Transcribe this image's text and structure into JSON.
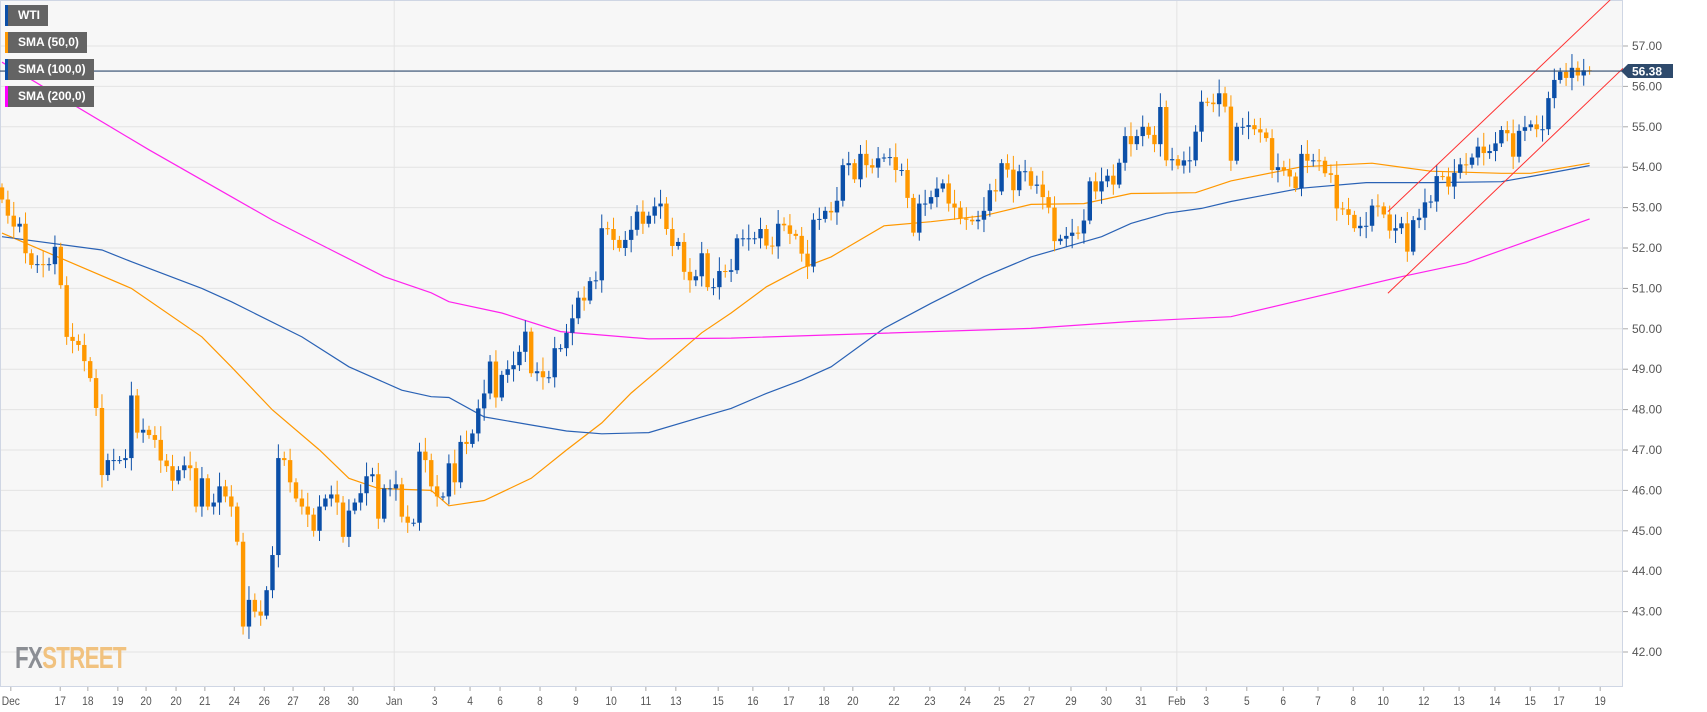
{
  "legend": [
    {
      "label": "WTI",
      "color": "#0b4fa8"
    },
    {
      "label": "SMA (50,0)",
      "color": "#ff9800"
    },
    {
      "label": "SMA (100,0)",
      "color": "#0b4fa8"
    },
    {
      "label": "SMA (200,0)",
      "color": "#ff00ff"
    }
  ],
  "logo": {
    "fx": "FX",
    "street": "STREET"
  },
  "current_price": {
    "label": "56.38",
    "value": 56.38,
    "color": "#2e4a6c"
  },
  "colors": {
    "up": "#0b4fa8",
    "down": "#ff9800",
    "sma50": "#ff9800",
    "sma100": "#2a62b5",
    "sma200": "#ff22ee",
    "channel": "#ff3030",
    "grid": "#e3e3e3",
    "background": "#f7f7f7"
  },
  "chart_data": {
    "type": "candlestick",
    "title": "WTI",
    "ylim": [
      41.2,
      58.15
    ],
    "yticks": [
      "42.00",
      "43.00",
      "44.00",
      "45.00",
      "46.00",
      "47.00",
      "48.00",
      "49.00",
      "50.00",
      "51.00",
      "52.00",
      "53.00",
      "54.00",
      "55.00",
      "56.00",
      "57.00"
    ],
    "xticks": [
      {
        "label": "Dec",
        "index": 1.5
      },
      {
        "label": "17",
        "index": 9.9
      },
      {
        "label": "18",
        "index": 14.6
      },
      {
        "label": "19",
        "index": 19.7
      },
      {
        "label": "20",
        "index": 24.5
      },
      {
        "label": "20",
        "index": 29.6
      },
      {
        "label": "21",
        "index": 34.5
      },
      {
        "label": "24",
        "index": 39.5
      },
      {
        "label": "26",
        "index": 44.6
      },
      {
        "label": "27",
        "index": 49.5
      },
      {
        "label": "28",
        "index": 54.8
      },
      {
        "label": "30",
        "index": 59.7
      },
      {
        "label": "Jan",
        "index": 66.7
      },
      {
        "label": "3",
        "index": 73.6
      },
      {
        "label": "4",
        "index": 79.6
      },
      {
        "label": "6",
        "index": 84.7
      },
      {
        "label": "8",
        "index": 91.5
      },
      {
        "label": "9",
        "index": 97.6
      },
      {
        "label": "10",
        "index": 103.6
      },
      {
        "label": "11",
        "index": 109.5
      },
      {
        "label": "13",
        "index": 114.6
      },
      {
        "label": "15",
        "index": 121.8
      },
      {
        "label": "16",
        "index": 127.7
      },
      {
        "label": "17",
        "index": 133.8
      },
      {
        "label": "18",
        "index": 139.8
      },
      {
        "label": "20",
        "index": 144.7
      },
      {
        "label": "22",
        "index": 151.7
      },
      {
        "label": "23",
        "index": 157.8
      },
      {
        "label": "24",
        "index": 163.8
      },
      {
        "label": "25",
        "index": 169.6
      },
      {
        "label": "27",
        "index": 174.7
      },
      {
        "label": "29",
        "index": 181.8
      },
      {
        "label": "30",
        "index": 187.8
      },
      {
        "label": "31",
        "index": 193.7
      },
      {
        "label": "Feb",
        "index": 199.8
      },
      {
        "label": "3",
        "index": 204.8
      },
      {
        "label": "5",
        "index": 211.7
      },
      {
        "label": "6",
        "index": 217.9
      },
      {
        "label": "7",
        "index": 223.8
      },
      {
        "label": "8",
        "index": 229.8
      },
      {
        "label": "10",
        "index": 234.9
      },
      {
        "label": "12",
        "index": 241.8
      },
      {
        "label": "13",
        "index": 247.8
      },
      {
        "label": "14",
        "index": 253.9
      },
      {
        "label": "15",
        "index": 259.9
      },
      {
        "label": "17",
        "index": 264.8
      },
      {
        "label": "19",
        "index": 271.8
      }
    ],
    "month_dividers": [
      66.7,
      199.8
    ],
    "first_open": 53.5,
    "closes": [
      53.2,
      52.8,
      52.53,
      52.6,
      51.87,
      51.58,
      51.6,
      51.58,
      51.6,
      52.03,
      51.08,
      49.8,
      49.7,
      49.6,
      49.2,
      48.78,
      48.04,
      46.38,
      46.75,
      46.75,
      46.75,
      46.8,
      48.35,
      47.43,
      47.5,
      47.37,
      47.25,
      46.74,
      46.6,
      46.24,
      46.5,
      46.62,
      46.55,
      45.6,
      46.3,
      45.6,
      45.7,
      46.1,
      45.85,
      45.6,
      44.73,
      42.63,
      43.29,
      43.0,
      42.9,
      43.53,
      44.4,
      46.8,
      46.75,
      46.2,
      45.8,
      45.6,
      45.4,
      45.0,
      45.6,
      45.8,
      45.9,
      45.7,
      44.85,
      45.5,
      45.7,
      45.93,
      46.35,
      46.4,
      45.3,
      46.05,
      46.05,
      46.15,
      45.35,
      45.2,
      45.2,
      46.96,
      46.75,
      46.1,
      45.85,
      45.85,
      46.67,
      46.2,
      47.2,
      47.15,
      47.41,
      48.03,
      48.4,
      49.19,
      48.3,
      48.86,
      49.0,
      49.1,
      49.43,
      49.93,
      48.9,
      48.95,
      48.8,
      48.8,
      49.52,
      49.52,
      49.9,
      50.26,
      50.77,
      50.7,
      51.18,
      51.2,
      52.49,
      52.47,
      52.2,
      52.0,
      52.2,
      52.45,
      52.9,
      52.6,
      52.8,
      53.03,
      53.1,
      52.47,
      52.05,
      52.15,
      51.41,
      51.2,
      51.3,
      51.87,
      51.03,
      51.03,
      51.43,
      51.41,
      51.45,
      52.24,
      52.24,
      52.24,
      52.24,
      52.47,
      52.06,
      52.04,
      52.6,
      52.56,
      52.35,
      52.3,
      51.86,
      51.54,
      52.7,
      52.72,
      52.92,
      52.88,
      53.17,
      54.05,
      54.1,
      53.7,
      54.33,
      54.05,
      53.99,
      54.22,
      54.24,
      54.25,
      53.93,
      53.93,
      53.24,
      52.38,
      53.1,
      53.1,
      53.26,
      53.47,
      53.6,
      53.1,
      53.0,
      52.73,
      52.7,
      52.66,
      52.7,
      52.92,
      53.43,
      53.4,
      54.1,
      53.94,
      53.43,
      53.9,
      53.9,
      53.54,
      53.57,
      53.26,
      53.0,
      52.17,
      52.23,
      52.3,
      52.38,
      52.36,
      52.68,
      53.65,
      53.4,
      53.65,
      53.79,
      53.57,
      54.11,
      54.77,
      54.57,
      54.77,
      55.0,
      54.8,
      54.57,
      55.49,
      54.17,
      54.2,
      54.04,
      54.17,
      54.17,
      54.88,
      55.62,
      55.6,
      55.56,
      55.83,
      55.5,
      54.16,
      55.0,
      55.0,
      55.04,
      54.94,
      54.86,
      54.72,
      53.93,
      54.0,
      53.93,
      53.77,
      53.48,
      54.33,
      54.16,
      54.17,
      54.16,
      53.85,
      53.81,
      52.98,
      52.96,
      52.82,
      52.49,
      52.55,
      52.55,
      53.05,
      53.03,
      52.83,
      52.43,
      52.49,
      52.61,
      51.91,
      52.69,
      52.75,
      53.13,
      53.15,
      53.78,
      53.77,
      53.52,
      53.86,
      54.07,
      54.06,
      54.24,
      54.51,
      54.35,
      54.4,
      54.59,
      54.92,
      54.84,
      54.26,
      54.9,
      54.99,
      55.06,
      54.94,
      54.94,
      55.71,
      56.16,
      56.36,
      56.21,
      56.46,
      56.27,
      56.4,
      56.38
    ],
    "series": [
      {
        "name": "SMA (50,0)",
        "key": "sma50",
        "points": [
          [
            0,
            52.37
          ],
          [
            22,
            51.0
          ],
          [
            34,
            49.8
          ],
          [
            39,
            49.06
          ],
          [
            46,
            47.99
          ],
          [
            54,
            47.0
          ],
          [
            59,
            46.3
          ],
          [
            64,
            46.05
          ],
          [
            73,
            46.0
          ],
          [
            76,
            45.62
          ],
          [
            82,
            45.75
          ],
          [
            90,
            46.3
          ],
          [
            96,
            47.0
          ],
          [
            102,
            47.67
          ],
          [
            107,
            48.41
          ],
          [
            113,
            49.15
          ],
          [
            119,
            49.9
          ],
          [
            124,
            50.39
          ],
          [
            130,
            51.04
          ],
          [
            136,
            51.5
          ],
          [
            141,
            51.78
          ],
          [
            143,
            51.95
          ],
          [
            150,
            52.55
          ],
          [
            158,
            52.65
          ],
          [
            167,
            52.8
          ],
          [
            175,
            53.08
          ],
          [
            184,
            53.1
          ],
          [
            192,
            53.35
          ],
          [
            203,
            53.37
          ],
          [
            209,
            53.66
          ],
          [
            221,
            54.01
          ],
          [
            233,
            54.1
          ],
          [
            243,
            53.9
          ],
          [
            255,
            53.85
          ],
          [
            260,
            53.85
          ],
          [
            270,
            54.1
          ]
        ]
      },
      {
        "name": "SMA (100,0)",
        "key": "sma100",
        "points": [
          [
            0,
            52.28
          ],
          [
            17,
            51.95
          ],
          [
            22,
            51.66
          ],
          [
            34,
            51.0
          ],
          [
            39,
            50.67
          ],
          [
            51,
            49.8
          ],
          [
            59,
            49.06
          ],
          [
            68,
            48.48
          ],
          [
            73,
            48.32
          ],
          [
            76,
            48.3
          ],
          [
            82,
            47.82
          ],
          [
            90,
            47.62
          ],
          [
            96,
            47.47
          ],
          [
            102,
            47.4
          ],
          [
            110,
            47.43
          ],
          [
            119,
            47.82
          ],
          [
            124,
            48.03
          ],
          [
            130,
            48.4
          ],
          [
            136,
            48.73
          ],
          [
            141,
            49.06
          ],
          [
            150,
            50.01
          ],
          [
            158,
            50.63
          ],
          [
            167,
            51.29
          ],
          [
            175,
            51.78
          ],
          [
            181,
            52.03
          ],
          [
            187,
            52.28
          ],
          [
            192,
            52.61
          ],
          [
            198,
            52.86
          ],
          [
            204,
            52.98
          ],
          [
            209,
            53.15
          ],
          [
            221,
            53.48
          ],
          [
            232,
            53.62
          ],
          [
            243,
            53.62
          ],
          [
            255,
            53.64
          ],
          [
            260,
            53.77
          ],
          [
            270,
            54.04
          ]
        ]
      },
      {
        "name": "SMA (200,0)",
        "key": "sma200",
        "points": [
          [
            0,
            56.6
          ],
          [
            25,
            54.43
          ],
          [
            39,
            53.27
          ],
          [
            46,
            52.69
          ],
          [
            56,
            51.95
          ],
          [
            65,
            51.29
          ],
          [
            73,
            50.89
          ],
          [
            76,
            50.67
          ],
          [
            85,
            50.39
          ],
          [
            95,
            49.93
          ],
          [
            110,
            49.75
          ],
          [
            124,
            49.77
          ],
          [
            141,
            49.85
          ],
          [
            175,
            50.01
          ],
          [
            192,
            50.18
          ],
          [
            209,
            50.3
          ],
          [
            221,
            50.71
          ],
          [
            238,
            51.29
          ],
          [
            249,
            51.63
          ],
          [
            260,
            52.2
          ],
          [
            270,
            52.72
          ]
        ]
      }
    ],
    "annotations": [
      {
        "type": "trendline",
        "name": "channel-upper",
        "from": [
          235.7,
          52.9
        ],
        "to": [
          273.5,
          58.14
        ]
      },
      {
        "type": "trendline",
        "name": "channel-lower",
        "from": [
          235.7,
          50.88
        ],
        "to": [
          275.7,
          56.45
        ]
      }
    ],
    "grid": true
  }
}
